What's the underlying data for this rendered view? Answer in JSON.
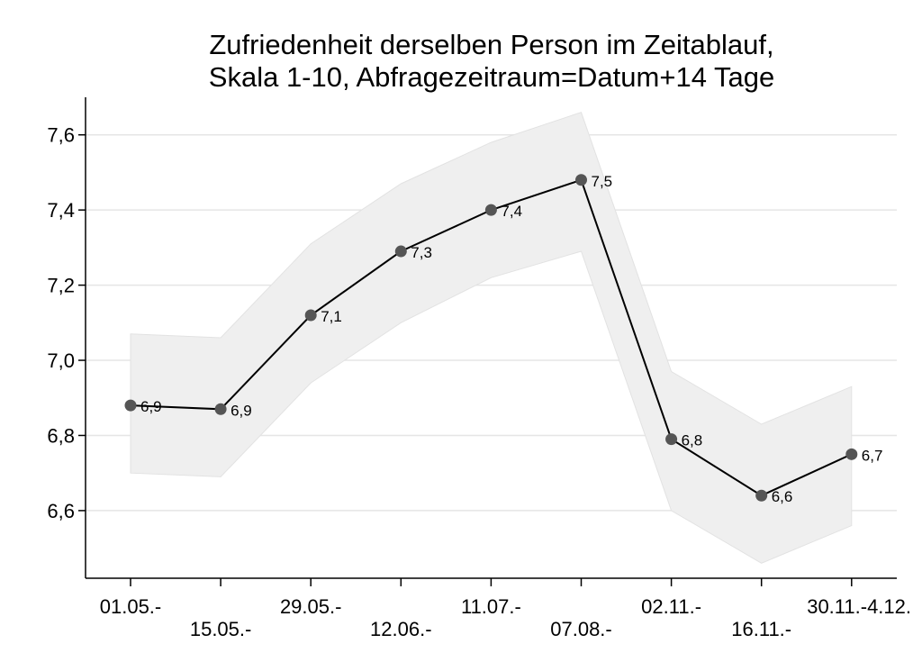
{
  "chart_data": {
    "type": "line",
    "title_lines": [
      "Zufriedenheit derselben Person im Zeitablauf,",
      "Skala 1-10, Abfragezeitraum=Datum+14 Tage"
    ],
    "xlabel": "",
    "ylabel": "",
    "categories": [
      "01.05.-",
      "15.05.-",
      "29.05.-",
      "12.06.-",
      "11.07.-",
      "07.08.-",
      "02.11.-",
      "16.11.-",
      "30.11.-4.12."
    ],
    "values": [
      6.88,
      6.87,
      7.12,
      7.29,
      7.4,
      7.48,
      6.79,
      6.64,
      6.75
    ],
    "data_labels": [
      "6,9",
      "6,9",
      "7,1",
      "7,3",
      "7,4",
      "7,5",
      "6,8",
      "6,6",
      "6,7"
    ],
    "ci_upper": [
      7.07,
      7.06,
      7.31,
      7.47,
      7.58,
      7.66,
      6.97,
      6.83,
      6.93
    ],
    "ci_lower": [
      6.7,
      6.69,
      6.94,
      7.1,
      7.22,
      7.29,
      6.6,
      6.46,
      6.56
    ],
    "ylim": [
      6.42,
      7.7
    ],
    "yticks": [
      6.6,
      6.8,
      7.0,
      7.2,
      7.4,
      7.6
    ],
    "ytick_labels": [
      "6,6",
      "6,8",
      "7,0",
      "7,2",
      "7,4",
      "7,6"
    ],
    "grid": true,
    "colors": {
      "line": "#000000",
      "marker": "#555555",
      "band": "#efefef",
      "band_edge": "#e2e2e2",
      "grid": "#e5e5e5"
    }
  }
}
